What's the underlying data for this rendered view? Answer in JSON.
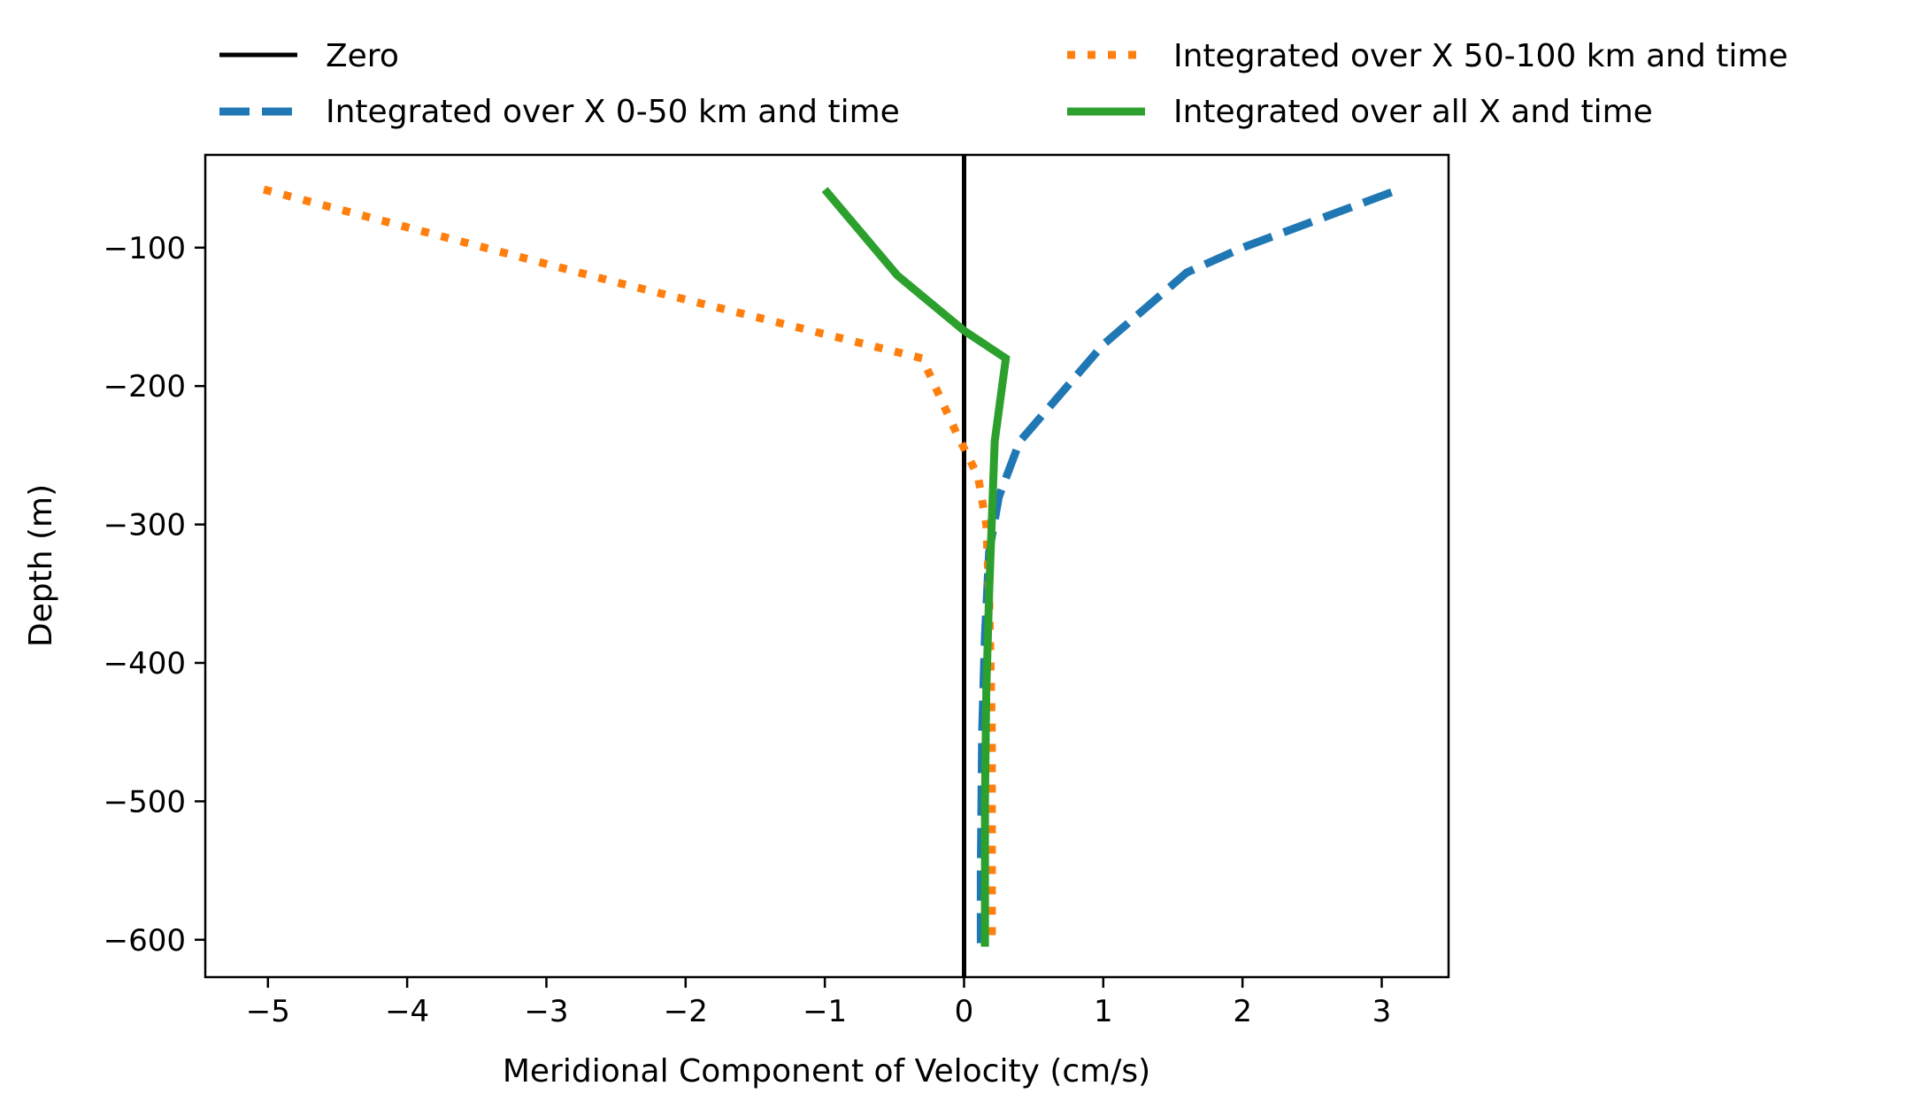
{
  "chart_data": {
    "type": "line",
    "xlabel": "Meridional Component of Velocity (cm/s)",
    "ylabel": "Depth (m)",
    "xlim": [
      -5.45,
      3.48
    ],
    "ylim": [
      -627,
      -33
    ],
    "xticks": [
      -5,
      -4,
      -3,
      -2,
      -1,
      0,
      1,
      2,
      3
    ],
    "xtick_labels": [
      "−5",
      "−4",
      "−3",
      "−2",
      "−1",
      "0",
      "1",
      "2",
      "3"
    ],
    "yticks": [
      -100,
      -200,
      -300,
      -400,
      -500,
      -600
    ],
    "ytick_labels": [
      "−100",
      "−200",
      "−300",
      "−400",
      "−500",
      "−600"
    ],
    "grid": false,
    "legend": {
      "placement": "above plot, two columns"
    },
    "series": [
      {
        "name": "Zero",
        "color": "#000000",
        "style": "solid",
        "x": [
          0,
          0
        ],
        "y": [
          -33,
          -627
        ]
      },
      {
        "name": "Integrated over X 0-50 km and time",
        "color": "#1f77b4",
        "style": "dashed",
        "x": [
          3.07,
          2.0,
          1.6,
          1.0,
          0.4,
          0.25,
          0.18,
          0.15,
          0.13,
          0.12,
          0.12
        ],
        "y": [
          -60,
          -100,
          -118,
          -170,
          -240,
          -280,
          -320,
          -380,
          -450,
          -550,
          -605
        ]
      },
      {
        "name": "Integrated over X 50-100 km and time",
        "color": "#ff7f0e",
        "style": "dotted",
        "x": [
          -5.03,
          -2.5,
          -0.3,
          -0.05,
          0.1,
          0.16,
          0.18,
          0.2,
          0.2
        ],
        "y": [
          -58,
          -125,
          -180,
          -235,
          -265,
          -300,
          -350,
          -450,
          -605
        ]
      },
      {
        "name": "Integrated over all X and time",
        "color": "#2ca02c",
        "style": "solid",
        "x": [
          -1.0,
          -0.48,
          0.0,
          0.3,
          0.22,
          0.18,
          0.16,
          0.15,
          0.15
        ],
        "y": [
          -58,
          -120,
          -160,
          -180,
          -240,
          -350,
          -420,
          -500,
          -605
        ]
      }
    ]
  }
}
